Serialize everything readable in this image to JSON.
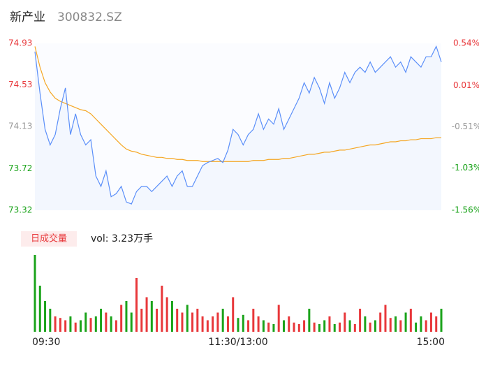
{
  "chart_data": {
    "type": "intraday",
    "title": "新产业",
    "subtitle": "300832.SZ",
    "volume_label": "日成交量",
    "volume_total": "vol: 3.23万手",
    "price_color": "#5b8ff9",
    "avg_color": "#f5a623",
    "up_color": "#e8373a",
    "down_color": "#1aa31a",
    "ylim": [
      73.32,
      74.93
    ],
    "yticks": [
      74.93,
      74.53,
      74.13,
      73.72,
      73.32
    ],
    "ytick_colors": [
      "#e8373a",
      "#e8373a",
      "#999999",
      "#1aa31a",
      "#1aa31a"
    ],
    "y2lim": [
      -1.56,
      0.54
    ],
    "y2ticks": [
      {
        "value": 0.54,
        "label": "0.54%"
      },
      {
        "value": 0.01,
        "label": "0.01%"
      },
      {
        "value": -0.51,
        "label": "-0.51%"
      },
      {
        "value": -1.03,
        "label": "-1.03%"
      },
      {
        "value": -1.56,
        "label": "-1.56%"
      }
    ],
    "xlim": [
      0,
      240
    ],
    "xticks": [
      {
        "value": 0,
        "label": "09:30"
      },
      {
        "value": 120,
        "label": "11:30/13:00"
      },
      {
        "value": 240,
        "label": "15:00"
      }
    ],
    "x": [
      0,
      3,
      6,
      9,
      12,
      15,
      18,
      21,
      24,
      27,
      30,
      33,
      36,
      39,
      42,
      45,
      48,
      51,
      54,
      57,
      60,
      63,
      66,
      69,
      72,
      75,
      78,
      81,
      84,
      87,
      90,
      93,
      96,
      99,
      102,
      105,
      108,
      111,
      114,
      117,
      120,
      123,
      126,
      129,
      132,
      135,
      138,
      141,
      144,
      147,
      150,
      153,
      156,
      159,
      162,
      165,
      168,
      171,
      174,
      177,
      180,
      183,
      186,
      189,
      192,
      195,
      198,
      201,
      204,
      207,
      210,
      213,
      216,
      219,
      222,
      225,
      228,
      231,
      234,
      237,
      240
    ],
    "series": [
      {
        "name": "price",
        "values": [
          74.85,
          74.45,
          74.1,
          73.95,
          74.05,
          74.3,
          74.5,
          74.05,
          74.25,
          74.05,
          73.95,
          74.0,
          73.65,
          73.55,
          73.7,
          73.45,
          73.48,
          73.55,
          73.4,
          73.38,
          73.5,
          73.55,
          73.55,
          73.5,
          73.55,
          73.6,
          73.65,
          73.55,
          73.65,
          73.7,
          73.55,
          73.55,
          73.65,
          73.75,
          73.78,
          73.8,
          73.82,
          73.78,
          73.9,
          74.1,
          74.05,
          73.95,
          74.05,
          74.1,
          74.25,
          74.1,
          74.2,
          74.15,
          74.3,
          74.1,
          74.2,
          74.3,
          74.4,
          74.55,
          74.45,
          74.6,
          74.5,
          74.35,
          74.55,
          74.4,
          74.5,
          74.65,
          74.55,
          74.65,
          74.7,
          74.65,
          74.75,
          74.65,
          74.7,
          74.75,
          74.8,
          74.7,
          74.75,
          74.65,
          74.8,
          74.75,
          74.7,
          74.8,
          74.8,
          74.9,
          74.75
        ]
      },
      {
        "name": "average",
        "values": [
          74.9,
          74.7,
          74.55,
          74.46,
          74.4,
          74.37,
          74.35,
          74.33,
          74.31,
          74.29,
          74.28,
          74.25,
          74.2,
          74.15,
          74.1,
          74.05,
          74.0,
          73.95,
          73.91,
          73.89,
          73.88,
          73.86,
          73.85,
          73.84,
          73.83,
          73.83,
          73.82,
          73.82,
          73.81,
          73.81,
          73.8,
          73.8,
          73.8,
          73.79,
          73.79,
          73.79,
          73.79,
          73.79,
          73.79,
          73.79,
          73.79,
          73.79,
          73.79,
          73.8,
          73.8,
          73.8,
          73.81,
          73.81,
          73.81,
          73.82,
          73.82,
          73.83,
          73.84,
          73.85,
          73.86,
          73.86,
          73.87,
          73.88,
          73.88,
          73.89,
          73.9,
          73.9,
          73.91,
          73.92,
          73.93,
          73.94,
          73.95,
          73.95,
          73.96,
          73.97,
          73.98,
          73.98,
          73.99,
          73.99,
          74.0,
          74.0,
          74.01,
          74.01,
          74.01,
          74.02,
          74.02
        ]
      }
    ],
    "volume_ylim": [
      0,
      100
    ],
    "volume": [
      100,
      60,
      40,
      30,
      20,
      18,
      15,
      20,
      12,
      15,
      25,
      18,
      20,
      30,
      25,
      20,
      15,
      35,
      40,
      25,
      70,
      30,
      45,
      40,
      30,
      60,
      45,
      40,
      30,
      25,
      35,
      25,
      30,
      20,
      15,
      20,
      25,
      30,
      20,
      45,
      18,
      22,
      15,
      30,
      20,
      15,
      12,
      10,
      35,
      15,
      20,
      12,
      10,
      15,
      30,
      12,
      10,
      15,
      20,
      10,
      12,
      25,
      15,
      10,
      30,
      20,
      12,
      15,
      25,
      35,
      18,
      20,
      15,
      25,
      30,
      12,
      20,
      15,
      25,
      20,
      30
    ]
  }
}
